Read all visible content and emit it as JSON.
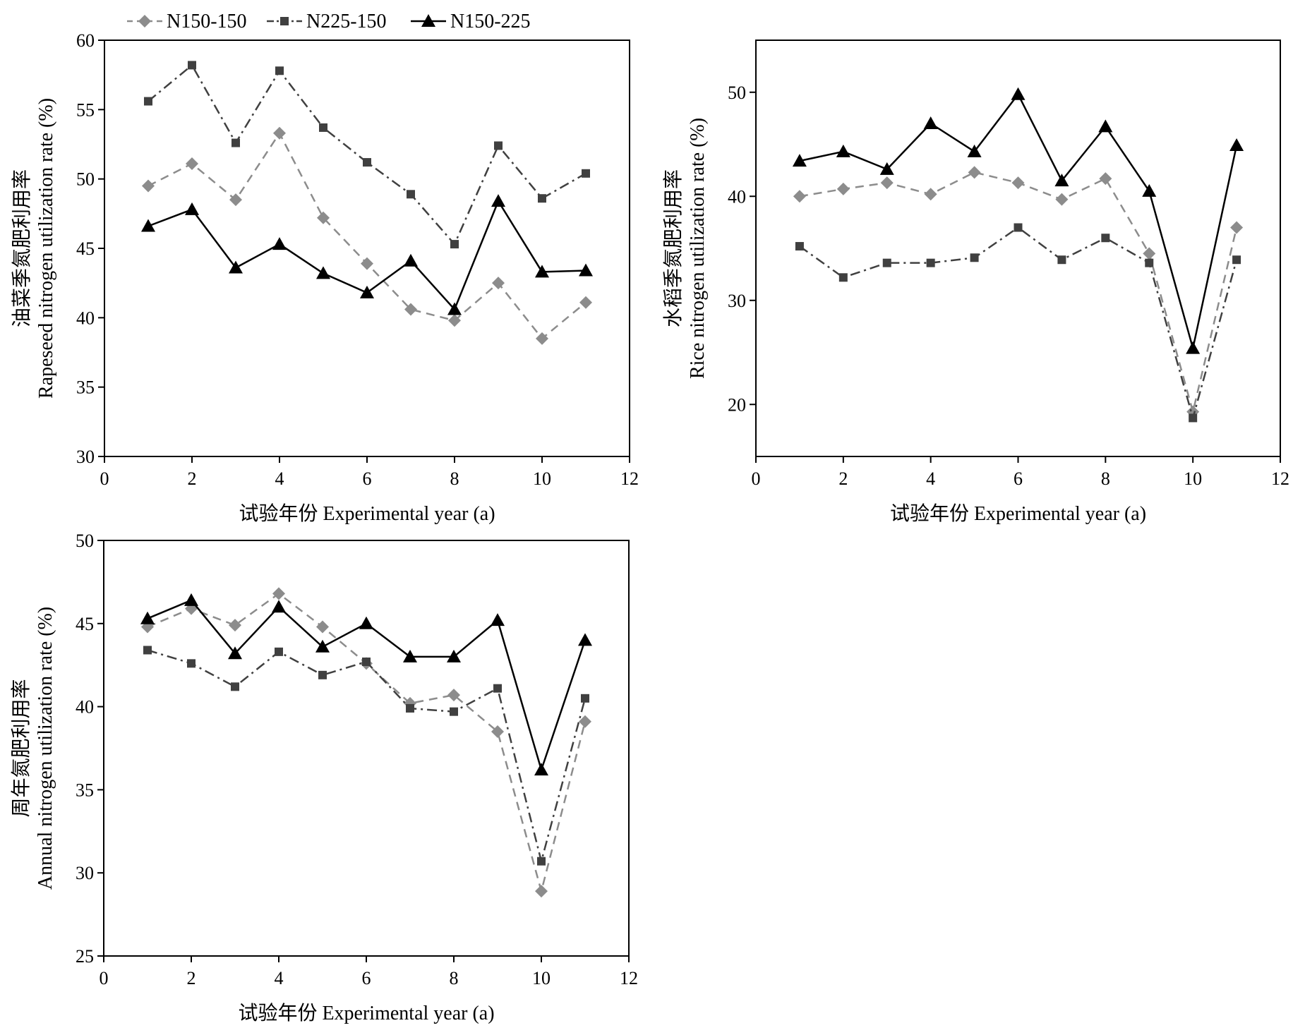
{
  "legend": [
    {
      "name": "N150-150",
      "color": "#8c8c8c",
      "marker": "diamond",
      "dash": "dashed"
    },
    {
      "name": "N225-150",
      "color": "#404040",
      "marker": "square",
      "dash": "dashdot"
    },
    {
      "name": "N150-225",
      "color": "#000000",
      "marker": "triangle",
      "dash": "solid"
    }
  ],
  "chart_data": [
    {
      "type": "line",
      "xlabel": "试验年份 Experimental year (a)",
      "ylabel_cn": "油菜季氮肥利用率",
      "ylabel_en": "Rapeseed nitrogen utilization rate (%)",
      "xlim": [
        0,
        12
      ],
      "ylim": [
        30,
        60
      ],
      "xticks": [
        0,
        2,
        4,
        6,
        8,
        10,
        12
      ],
      "yticks": [
        30,
        35,
        40,
        45,
        50,
        55,
        60
      ],
      "x": [
        1,
        2,
        3,
        4,
        5,
        6,
        7,
        8,
        9,
        10,
        11
      ],
      "grid": false,
      "series": [
        {
          "name": "N150-150",
          "values": [
            49.5,
            51.1,
            48.5,
            53.3,
            47.2,
            43.9,
            40.6,
            39.8,
            42.5,
            38.5,
            41.1
          ]
        },
        {
          "name": "N225-150",
          "values": [
            55.6,
            58.2,
            52.6,
            57.8,
            53.7,
            51.2,
            48.9,
            45.3,
            52.4,
            48.6,
            50.4
          ]
        },
        {
          "name": "N150-225",
          "values": [
            46.6,
            47.8,
            43.6,
            45.3,
            43.2,
            41.8,
            44.1,
            40.6,
            48.4,
            43.3,
            43.4
          ]
        }
      ]
    },
    {
      "type": "line",
      "xlabel": "试验年份 Experimental year (a)",
      "ylabel_cn": "水稻季氮肥利用率",
      "ylabel_en": "Rice nitrogen utilization rate (%)",
      "xlim": [
        0,
        12
      ],
      "ylim": [
        15,
        55
      ],
      "xticks": [
        0,
        2,
        4,
        6,
        8,
        10,
        12
      ],
      "yticks": [
        20,
        30,
        40,
        50
      ],
      "x": [
        1,
        2,
        3,
        4,
        5,
        6,
        7,
        8,
        9,
        10,
        11
      ],
      "grid": false,
      "series": [
        {
          "name": "N150-150",
          "values": [
            40.0,
            40.7,
            41.3,
            40.2,
            42.3,
            41.3,
            39.7,
            41.7,
            34.5,
            19.3,
            37.0
          ]
        },
        {
          "name": "N225-150",
          "values": [
            35.2,
            32.2,
            33.6,
            33.6,
            34.1,
            37.0,
            33.9,
            36.0,
            33.6,
            18.7,
            33.9
          ]
        },
        {
          "name": "N150-225",
          "values": [
            43.4,
            44.3,
            42.6,
            47.0,
            44.3,
            49.8,
            41.5,
            46.7,
            40.5,
            25.4,
            44.9
          ]
        }
      ]
    },
    {
      "type": "line",
      "xlabel": "试验年份 Experimental year (a)",
      "ylabel_cn": "周年氮肥利用率",
      "ylabel_en": "Annual nitrogen utilization rate (%)",
      "xlim": [
        0,
        12
      ],
      "ylim": [
        25,
        50
      ],
      "xticks": [
        0,
        2,
        4,
        6,
        8,
        10,
        12
      ],
      "yticks": [
        25,
        30,
        35,
        40,
        45,
        50
      ],
      "x": [
        1,
        2,
        3,
        4,
        5,
        6,
        7,
        8,
        9,
        10,
        11
      ],
      "grid": false,
      "series": [
        {
          "name": "N150-150",
          "values": [
            44.8,
            45.9,
            44.9,
            46.8,
            44.8,
            42.6,
            40.2,
            40.7,
            38.5,
            28.9,
            39.1
          ]
        },
        {
          "name": "N225-150",
          "values": [
            43.4,
            42.6,
            41.2,
            43.3,
            41.9,
            42.7,
            39.9,
            39.7,
            41.1,
            30.7,
            40.5
          ]
        },
        {
          "name": "N150-225",
          "values": [
            45.3,
            46.4,
            43.2,
            46.0,
            43.6,
            45.0,
            43.0,
            43.0,
            45.2,
            36.2,
            44.0
          ]
        }
      ]
    }
  ]
}
